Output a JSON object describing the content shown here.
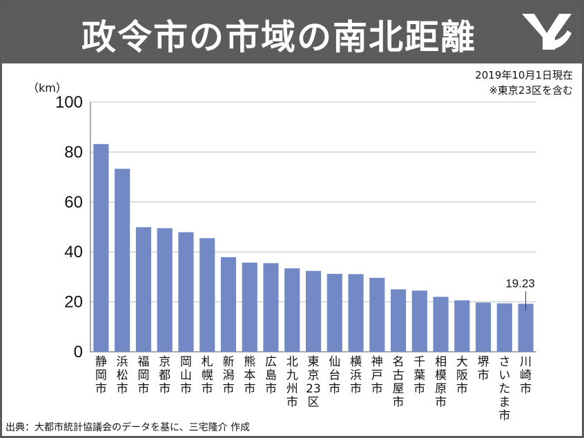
{
  "header": {
    "title": "政令市の市域の南北距離",
    "logo_icon": "ym-logo-icon"
  },
  "note": {
    "date": "2019年10月1日現在",
    "remark": "※東京23区を含む"
  },
  "source": "出典：大都市統計協議会のデータを基に、三宅隆介 作成",
  "colors": {
    "bar": "#7289c6",
    "header_bg": "#5c5c5c",
    "grid": "#bfbfbf"
  },
  "chart_data": {
    "type": "bar",
    "ylabel": "（km）",
    "ylim": [
      0,
      100
    ],
    "yticks": [
      0,
      20,
      40,
      60,
      80,
      100
    ],
    "grid": true,
    "categories": [
      "静岡市",
      "浜松市",
      "福岡市",
      "京都市",
      "岡山市",
      "札幌市",
      "新潟市",
      "熊本市",
      "広島市",
      "北九州市",
      "東京23区",
      "仙台市",
      "横浜市",
      "神戸市",
      "名古屋市",
      "千葉市",
      "相模原市",
      "大阪市",
      "堺市",
      "さいたま市",
      "川崎市"
    ],
    "values": [
      83.2,
      73.3,
      49.9,
      49.5,
      47.9,
      45.5,
      37.9,
      35.7,
      35.5,
      33.4,
      32.4,
      31.2,
      31.1,
      29.6,
      25.0,
      24.5,
      22.0,
      20.6,
      19.7,
      19.4,
      19.23
    ],
    "annotations": [
      {
        "category": "川崎市",
        "text": "19.23"
      }
    ]
  }
}
